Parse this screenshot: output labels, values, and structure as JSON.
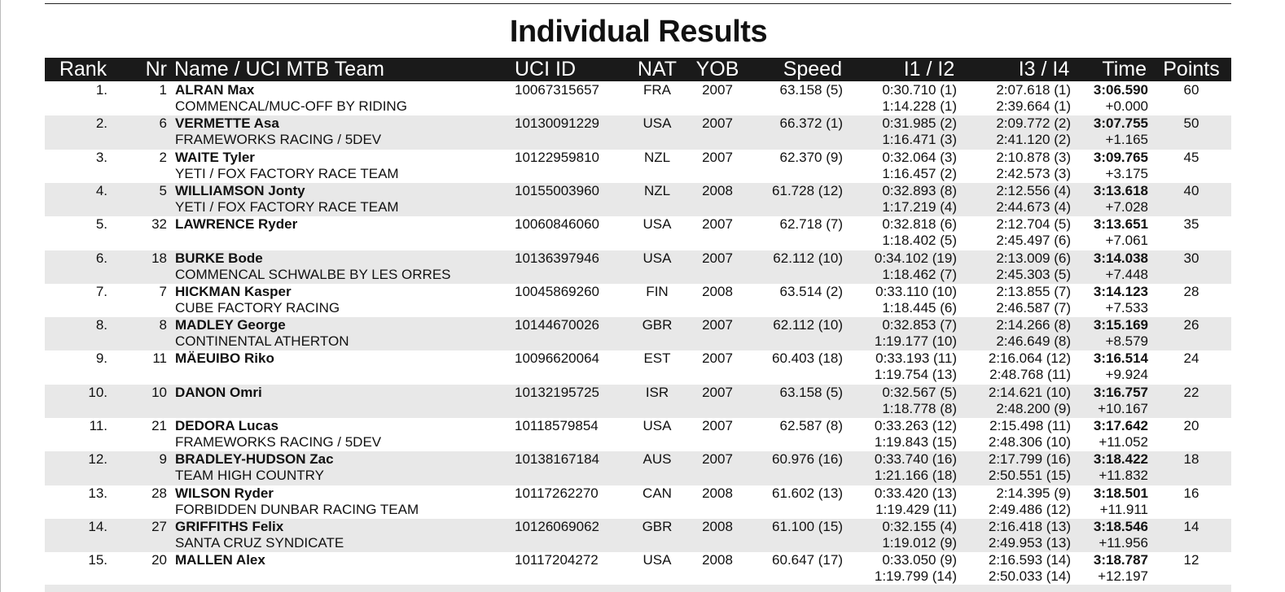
{
  "title": "Individual Results",
  "columns": [
    "Rank",
    "Nr",
    "Name / UCI MTB Team",
    "UCI ID",
    "NAT",
    "YOB",
    "Speed",
    "I1 / I2",
    "I3 / I4",
    "Time",
    "Points"
  ],
  "rows": [
    {
      "rank": "1.",
      "nr": "1",
      "name": "ALRAN Max",
      "team": "COMMENCAL/MUC-OFF BY RIDING",
      "uci_id": "10067315657",
      "nat": "FRA",
      "yob": "2007",
      "speed": "63.158 (5)",
      "i1": "0:30.710 (1)",
      "i2": "1:14.228 (1)",
      "i3": "2:07.618 (1)",
      "i4": "2:39.664 (1)",
      "time": "3:06.590",
      "gap": "+0.000",
      "points": "60"
    },
    {
      "rank": "2.",
      "nr": "6",
      "name": "VERMETTE Asa",
      "team": "FRAMEWORKS RACING / 5DEV",
      "uci_id": "10130091229",
      "nat": "USA",
      "yob": "2007",
      "speed": "66.372 (1)",
      "i1": "0:31.985 (2)",
      "i2": "1:16.471 (3)",
      "i3": "2:09.772 (2)",
      "i4": "2:41.120 (2)",
      "time": "3:07.755",
      "gap": "+1.165",
      "points": "50"
    },
    {
      "rank": "3.",
      "nr": "2",
      "name": "WAITE Tyler",
      "team": "YETI / FOX FACTORY RACE TEAM",
      "uci_id": "10122959810",
      "nat": "NZL",
      "yob": "2007",
      "speed": "62.370 (9)",
      "i1": "0:32.064 (3)",
      "i2": "1:16.457 (2)",
      "i3": "2:10.878 (3)",
      "i4": "2:42.573 (3)",
      "time": "3:09.765",
      "gap": "+3.175",
      "points": "45"
    },
    {
      "rank": "4.",
      "nr": "5",
      "name": "WILLIAMSON Jonty",
      "team": "YETI / FOX FACTORY RACE TEAM",
      "uci_id": "10155003960",
      "nat": "NZL",
      "yob": "2008",
      "speed": "61.728 (12)",
      "i1": "0:32.893 (8)",
      "i2": "1:17.219 (4)",
      "i3": "2:12.556 (4)",
      "i4": "2:44.673 (4)",
      "time": "3:13.618",
      "gap": "+7.028",
      "points": "40"
    },
    {
      "rank": "5.",
      "nr": "32",
      "name": "LAWRENCE Ryder",
      "uci_id": "10060846060",
      "nat": "USA",
      "yob": "2007",
      "speed": "62.718 (7)",
      "i1": "0:32.818 (6)",
      "i2": "1:18.402 (5)",
      "i3": "2:12.704 (5)",
      "i4": "2:45.497 (6)",
      "time": "3:13.651",
      "gap": "+7.061",
      "points": "35"
    },
    {
      "rank": "6.",
      "nr": "18",
      "name": "BURKE Bode",
      "team": "COMMENCAL SCHWALBE BY LES ORRES",
      "uci_id": "10136397946",
      "nat": "USA",
      "yob": "2007",
      "speed": "62.112 (10)",
      "i1": "0:34.102 (19)",
      "i2": "1:18.462 (7)",
      "i3": "2:13.009 (6)",
      "i4": "2:45.303 (5)",
      "time": "3:14.038",
      "gap": "+7.448",
      "points": "30"
    },
    {
      "rank": "7.",
      "nr": "7",
      "name": "HICKMAN Kasper",
      "team": "CUBE FACTORY RACING",
      "uci_id": "10045869260",
      "nat": "FIN",
      "yob": "2008",
      "speed": "63.514 (2)",
      "i1": "0:33.110 (10)",
      "i2": "1:18.445 (6)",
      "i3": "2:13.855 (7)",
      "i4": "2:46.587 (7)",
      "time": "3:14.123",
      "gap": "+7.533",
      "points": "28"
    },
    {
      "rank": "8.",
      "nr": "8",
      "name": "MADLEY George",
      "team": "CONTINENTAL ATHERTON",
      "uci_id": "10144670026",
      "nat": "GBR",
      "yob": "2007",
      "speed": "62.112 (10)",
      "i1": "0:32.853 (7)",
      "i2": "1:19.177 (10)",
      "i3": "2:14.266 (8)",
      "i4": "2:46.649 (8)",
      "time": "3:15.169",
      "gap": "+8.579",
      "points": "26"
    },
    {
      "rank": "9.",
      "nr": "11",
      "name": "MÄEUIBO Riko",
      "uci_id": "10096620064",
      "nat": "EST",
      "yob": "2007",
      "speed": "60.403 (18)",
      "i1": "0:33.193 (11)",
      "i2": "1:19.754 (13)",
      "i3": "2:16.064 (12)",
      "i4": "2:48.768 (11)",
      "time": "3:16.514",
      "gap": "+9.924",
      "points": "24"
    },
    {
      "rank": "10.",
      "nr": "10",
      "name": "DANON Omri",
      "uci_id": "10132195725",
      "nat": "ISR",
      "yob": "2007",
      "speed": "63.158 (5)",
      "i1": "0:32.567 (5)",
      "i2": "1:18.778 (8)",
      "i3": "2:14.621 (10)",
      "i4": "2:48.200 (9)",
      "time": "3:16.757",
      "gap": "+10.167",
      "points": "22"
    },
    {
      "rank": "11.",
      "nr": "21",
      "name": "DEDORA Lucas",
      "team": "FRAMEWORKS RACING / 5DEV",
      "uci_id": "10118579854",
      "nat": "USA",
      "yob": "2007",
      "speed": "62.587 (8)",
      "i1": "0:33.263 (12)",
      "i2": "1:19.843 (15)",
      "i3": "2:15.498 (11)",
      "i4": "2:48.306 (10)",
      "time": "3:17.642",
      "gap": "+11.052",
      "points": "20"
    },
    {
      "rank": "12.",
      "nr": "9",
      "name": "BRADLEY-HUDSON Zac",
      "team": "TEAM HIGH COUNTRY",
      "uci_id": "10138167184",
      "nat": "AUS",
      "yob": "2007",
      "speed": "60.976 (16)",
      "i1": "0:33.740 (16)",
      "i2": "1:21.166 (18)",
      "i3": "2:17.799 (16)",
      "i4": "2:50.551 (15)",
      "time": "3:18.422",
      "gap": "+11.832",
      "points": "18"
    },
    {
      "rank": "13.",
      "nr": "28",
      "name": "WILSON Ryder",
      "team": "FORBIDDEN DUNBAR RACING TEAM",
      "uci_id": "10117262270",
      "nat": "CAN",
      "yob": "2008",
      "speed": "61.602 (13)",
      "i1": "0:33.420 (13)",
      "i2": "1:19.429 (11)",
      "i3": "2:14.395 (9)",
      "i4": "2:49.486 (12)",
      "time": "3:18.501",
      "gap": "+11.911",
      "points": "16"
    },
    {
      "rank": "14.",
      "nr": "27",
      "name": "GRIFFITHS Felix",
      "team": "SANTA CRUZ SYNDICATE",
      "uci_id": "10126069062",
      "nat": "GBR",
      "yob": "2008",
      "speed": "61.100 (15)",
      "i1": "0:32.155 (4)",
      "i2": "1:19.012 (9)",
      "i3": "2:16.418 (13)",
      "i4": "2:49.953 (13)",
      "time": "3:18.546",
      "gap": "+11.956",
      "points": "14"
    },
    {
      "rank": "15.",
      "nr": "20",
      "name": "MALLEN Alex",
      "uci_id": "10117204272",
      "nat": "USA",
      "yob": "2008",
      "speed": "60.647 (17)",
      "i1": "0:33.050 (9)",
      "i2": "1:19.799 (14)",
      "i3": "2:16.593 (14)",
      "i4": "2:50.033 (14)",
      "time": "3:18.787",
      "gap": "+12.197",
      "points": "12"
    }
  ]
}
